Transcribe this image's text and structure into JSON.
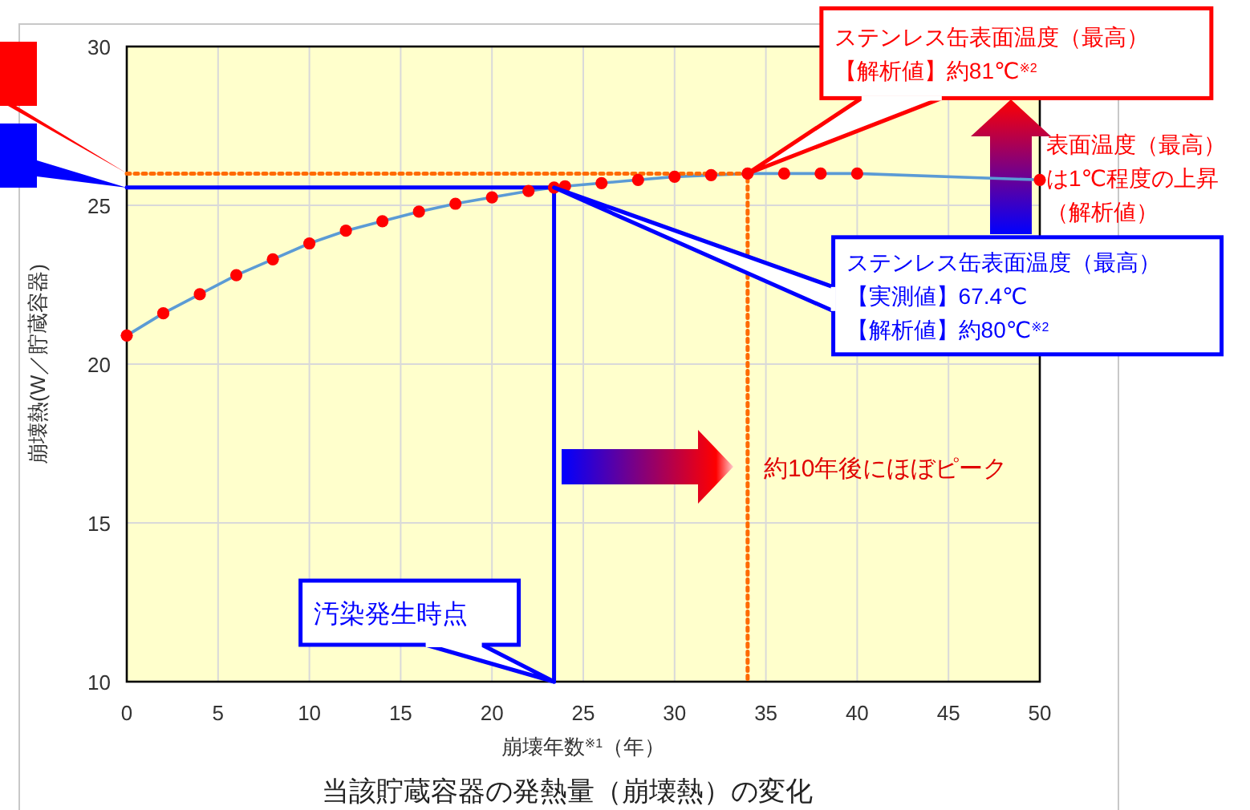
{
  "chart_data": {
    "type": "line",
    "title": "当該貯蔵容器の発熱量（崩壊熱）の変化",
    "xlabel": "崩壊年数$^{※1}$（年）",
    "ylabel": "崩壊熱(W／貯蔵容器)",
    "xlim": [
      0,
      50
    ],
    "ylim": [
      10,
      30
    ],
    "xticks": [
      0,
      5,
      10,
      15,
      20,
      25,
      30,
      35,
      40,
      45,
      50
    ],
    "yticks": [
      10,
      15,
      20,
      25,
      30
    ],
    "grid": true,
    "series": [
      {
        "type": "line",
        "color": "#5b9bd5",
        "marker": "none",
        "x": [
          0,
          2,
          4,
          6,
          8,
          10,
          12,
          14,
          16,
          18,
          20,
          22,
          23.4,
          24,
          26,
          28,
          30,
          32,
          34,
          36,
          38,
          40,
          50
        ],
        "values": [
          20.9,
          21.6,
          22.2,
          22.8,
          23.3,
          23.8,
          24.2,
          24.5,
          24.8,
          25.05,
          25.25,
          25.45,
          25.56,
          25.6,
          25.7,
          25.8,
          25.9,
          25.95,
          26.0,
          26.0,
          26.0,
          26.0,
          25.8
        ]
      },
      {
        "type": "scatter",
        "color": "#ff0000",
        "marker": "circle",
        "x": [
          0,
          2,
          4,
          6,
          8,
          10,
          12,
          14,
          16,
          18,
          20,
          22,
          23.4,
          24,
          26,
          28,
          30,
          32,
          34,
          36,
          38,
          40,
          50
        ],
        "values": [
          20.9,
          21.6,
          22.2,
          22.8,
          23.3,
          23.8,
          24.2,
          24.5,
          24.8,
          25.05,
          25.25,
          25.45,
          25.56,
          25.6,
          25.7,
          25.8,
          25.9,
          25.95,
          26.0,
          26.0,
          26.0,
          26.0,
          25.8
        ]
      },
      {
        "type": "line",
        "color": "#0000ff",
        "marker": "none",
        "line_style": "solid",
        "x": [
          0,
          23.4,
          23.4
        ],
        "values": [
          25.56,
          25.56,
          10
        ]
      },
      {
        "type": "line",
        "color": "#ff6a00",
        "marker": "none",
        "line_style": "dotted",
        "x": [
          0,
          34,
          34
        ],
        "values": [
          26.0,
          26.0,
          10
        ]
      }
    ],
    "annotations": [
      "ステンレス缶表面温度（最高）",
      "【解析値】約81℃$^{※2}$",
      {
        "text": "ステンレス缶表面温度（最高）",
        "x": 23.4,
        "y": 25.56
      },
      "【実測値】67.4℃",
      "【解析値】約80℃$^{※2}$",
      "表面温度（最高）",
      "は1℃程度の上昇",
      "（解析値）",
      "約10年後にほぼピーク",
      {
        "text": "汚染発生時点",
        "x": 23.4,
        "y": 10
      }
    ]
  }
}
